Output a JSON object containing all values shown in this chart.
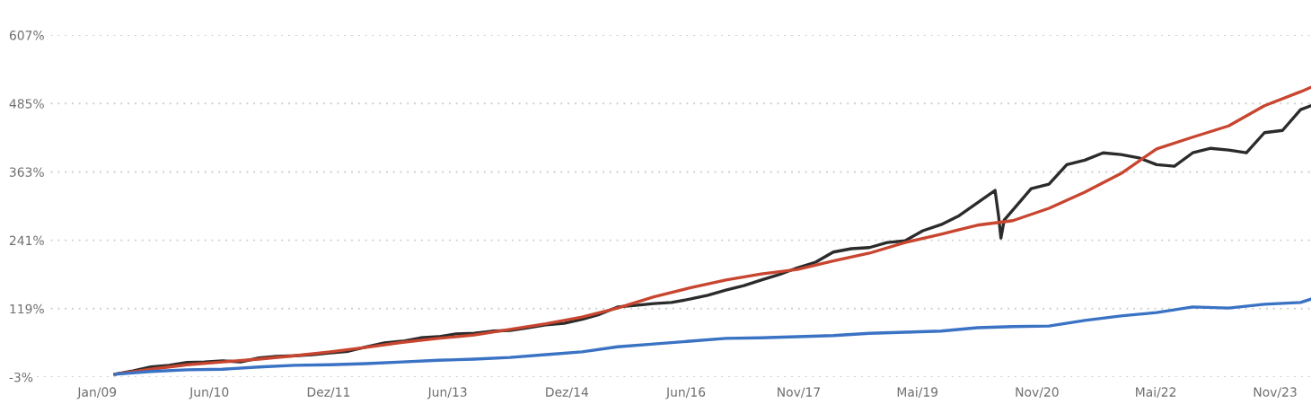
{
  "chart_data": {
    "type": "line",
    "xlim": [
      "2007-11-22",
      "2024-04-14"
    ],
    "xticks": [
      {
        "value": "2009-01-01",
        "label": "Jan/09"
      },
      {
        "value": "2010-06-01",
        "label": "Jun/10"
      },
      {
        "value": "2011-12-01",
        "label": "Dez/11"
      },
      {
        "value": "2013-06-01",
        "label": "Jun/13"
      },
      {
        "value": "2014-12-01",
        "label": "Dez/14"
      },
      {
        "value": "2016-06-01",
        "label": "Jun/16"
      },
      {
        "value": "2017-11-01",
        "label": "Nov/17"
      },
      {
        "value": "2019-05-01",
        "label": "Mai/19"
      },
      {
        "value": "2020-11-01",
        "label": "Nov/20"
      },
      {
        "value": "2022-05-01",
        "label": "Mai/22"
      },
      {
        "value": "2023-11-01",
        "label": "Nov/23"
      }
    ],
    "ylim": [
      -3,
      607
    ],
    "yticks": [
      {
        "value": -3,
        "label": "-3%"
      },
      {
        "value": 119,
        "label": "119%"
      },
      {
        "value": 241,
        "label": "241%"
      },
      {
        "value": 363,
        "label": "363%"
      },
      {
        "value": 485,
        "label": "485%"
      },
      {
        "value": 607,
        "label": "607%"
      }
    ],
    "grid": "y",
    "series": [
      {
        "color": "#2b2b2b",
        "x": [
          "2009-03-22",
          "2009-06-14",
          "2009-09-05",
          "2009-11-27",
          "2010-02-18",
          "2010-05-09",
          "2010-08-01",
          "2010-10-22",
          "2011-01-14",
          "2011-04-05",
          "2011-06-27",
          "2011-09-18",
          "2011-12-09",
          "2012-03-01",
          "2012-05-22",
          "2012-08-14",
          "2012-11-05",
          "2013-01-27",
          "2013-04-18",
          "2013-07-09",
          "2013-10-01",
          "2013-12-22",
          "2014-03-14",
          "2014-06-05",
          "2014-08-26",
          "2014-11-18",
          "2015-02-09",
          "2015-05-01",
          "2015-07-22",
          "2015-10-13",
          "2016-01-05",
          "2016-03-26",
          "2016-06-18",
          "2016-09-09",
          "2016-12-01",
          "2017-02-22",
          "2017-05-13",
          "2017-08-05",
          "2017-10-26",
          "2018-01-18",
          "2018-04-09",
          "2018-07-01",
          "2018-09-22",
          "2018-12-13",
          "2019-03-05",
          "2019-05-26",
          "2019-08-18",
          "2019-11-09",
          "2020-02-01",
          "2020-04-22",
          "2020-05-08",
          "2020-05-19",
          "2020-06-03",
          "2020-07-13",
          "2020-10-05",
          "2020-12-26",
          "2021-03-18",
          "2021-06-09",
          "2021-09-01",
          "2021-11-22",
          "2022-02-13",
          "2022-05-05",
          "2022-07-26",
          "2022-10-18",
          "2023-01-09",
          "2023-04-01",
          "2023-06-22",
          "2023-09-13",
          "2023-12-05",
          "2024-02-26",
          "2024-04-14"
        ],
        "values": [
          2,
          8,
          15,
          18,
          23,
          24,
          26,
          24,
          31,
          34,
          35,
          37,
          40,
          43,
          51,
          58,
          61,
          67,
          69,
          74,
          75,
          79,
          80,
          85,
          90,
          93,
          100,
          109,
          122,
          125,
          128,
          130,
          136,
          143,
          152,
          160,
          170,
          180,
          192,
          202,
          220,
          226,
          228,
          237,
          240,
          258,
          269,
          285,
          308,
          330,
          285,
          245,
          277,
          295,
          333,
          341,
          376,
          384,
          397,
          394,
          388,
          376,
          373,
          397,
          405,
          402,
          397,
          433,
          437,
          474,
          481
        ]
      },
      {
        "color": "#c8452f",
        "x": [
          "2009-03-22",
          "2009-09-05",
          "2010-02-18",
          "2010-08-01",
          "2011-01-14",
          "2011-06-27",
          "2011-12-09",
          "2012-05-22",
          "2012-11-05",
          "2013-04-18",
          "2013-10-01",
          "2014-03-14",
          "2014-08-26",
          "2015-02-09",
          "2015-07-22",
          "2016-01-05",
          "2016-06-18",
          "2016-12-01",
          "2017-05-13",
          "2017-10-26",
          "2018-04-09",
          "2018-09-22",
          "2019-03-05",
          "2019-08-18",
          "2020-02-01",
          "2020-07-13",
          "2020-12-26",
          "2021-06-09",
          "2021-11-22",
          "2022-05-05",
          "2022-10-18",
          "2023-04-01",
          "2023-09-13",
          "2024-02-26",
          "2024-04-14"
        ],
        "values": [
          2,
          11,
          19,
          24,
          29,
          35,
          42,
          50,
          59,
          66,
          72,
          82,
          92,
          104,
          120,
          140,
          156,
          170,
          181,
          189,
          204,
          218,
          237,
          252,
          268,
          276,
          298,
          327,
          360,
          404,
          425,
          445,
          481,
          506,
          514
        ]
      },
      {
        "color": "#3a72c4",
        "x": [
          "2009-03-22",
          "2009-09-05",
          "2010-02-18",
          "2010-08-01",
          "2011-01-14",
          "2011-06-27",
          "2011-12-09",
          "2012-05-22",
          "2012-11-05",
          "2013-04-18",
          "2013-10-01",
          "2014-03-14",
          "2014-08-26",
          "2015-02-09",
          "2015-07-22",
          "2016-01-05",
          "2016-06-18",
          "2016-12-01",
          "2017-05-13",
          "2017-10-26",
          "2018-04-09",
          "2018-09-22",
          "2019-03-05",
          "2019-08-18",
          "2020-02-01",
          "2020-07-13",
          "2020-12-26",
          "2021-06-09",
          "2021-11-22",
          "2022-05-05",
          "2022-10-18",
          "2023-04-01",
          "2023-09-13",
          "2024-02-26",
          "2024-04-14"
        ],
        "values": [
          2,
          7,
          10,
          11,
          15,
          18,
          19,
          21,
          24,
          27,
          29,
          32,
          37,
          42,
          51,
          56,
          61,
          66,
          67,
          69,
          71,
          75,
          77,
          79,
          85,
          87,
          88,
          98,
          106,
          112,
          122,
          120,
          127,
          130,
          136
        ]
      }
    ]
  }
}
